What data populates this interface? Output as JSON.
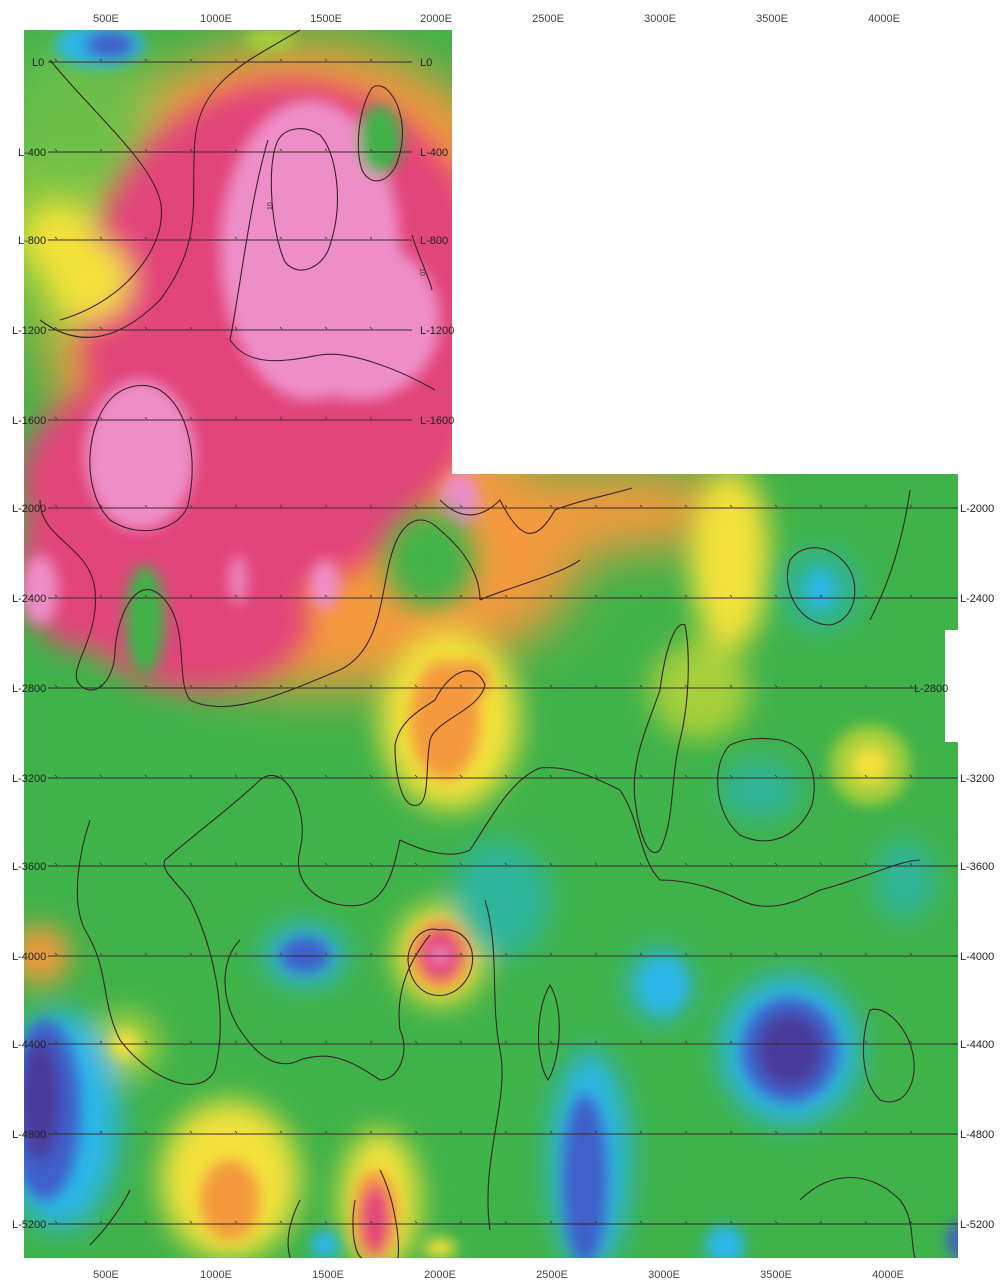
{
  "map": {
    "top_axis": [
      "500E",
      "1000E",
      "1500E",
      "2000E",
      "2500E",
      "3000E",
      "3500E",
      "4000E"
    ],
    "bottom_axis": [
      "500E",
      "1000E",
      "1500E",
      "2000E",
      "2500E",
      "3000E",
      "3500E",
      "4000E"
    ],
    "lines_left": [
      "L0",
      "L-400",
      "L-800",
      "L-1200",
      "L-1600",
      "L-2000",
      "L-2400",
      "L-2800",
      "L-3200",
      "L-3600",
      "L-4000",
      "L-4400",
      "L-4800",
      "L-5200"
    ],
    "lines_right": [
      "L0",
      "L-400",
      "L-800",
      "L-1200",
      "L-1600",
      "L-2000",
      "L-2400",
      "L-2800",
      "L-3200",
      "L-3600",
      "L-4000",
      "L-4400",
      "L-4800",
      "L-5200"
    ],
    "contour_labels": [
      "10",
      "10"
    ],
    "colors": {
      "pink": "#ee8ec8",
      "magenta": "#e2457a",
      "orange": "#f49a3c",
      "yellow": "#f3e23a",
      "yellow_green": "#a6cf3a",
      "green": "#3fb24a",
      "teal": "#2fb59b",
      "cyan": "#29b6e8",
      "blue": "#3f5fc9",
      "indigo": "#4a3b9a"
    }
  }
}
